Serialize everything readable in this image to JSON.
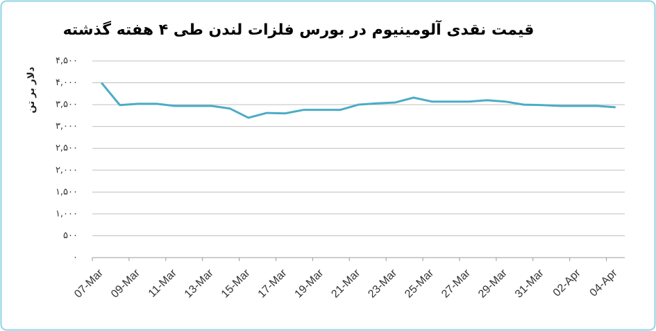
{
  "chart_data": {
    "type": "line",
    "title": "قیمت نقدی آلومینیوم در بورس فلزات لندن طی ۴ هفته گذشته",
    "y_label": "دلار بر تن",
    "categories": [
      "07-Mar",
      null,
      "09-Mar",
      null,
      "11-Mar",
      null,
      "13-Mar",
      null,
      "15-Mar",
      null,
      "17-Mar",
      null,
      "19-Mar",
      null,
      "21-Mar",
      null,
      "23-Mar",
      null,
      "25-Mar",
      null,
      "27-Mar",
      null,
      "29-Mar",
      null,
      "31-Mar",
      null,
      "02-Apr",
      null,
      "04-Apr"
    ],
    "series": [
      {
        "name": "قیمت نقدی آلومینیوم",
        "color": "#4bacc6",
        "values": [
          4000,
          3490,
          3520,
          3520,
          3470,
          3470,
          3470,
          3410,
          3200,
          3310,
          3300,
          3380,
          3380,
          3380,
          3500,
          3530,
          3550,
          3660,
          3570,
          3570,
          3570,
          3600,
          3570,
          3500,
          3490,
          3470,
          3470,
          3470,
          3440
        ]
      }
    ],
    "ylim": [
      0,
      4500
    ],
    "yticks": [
      {
        "value": 0,
        "label": "۰"
      },
      {
        "value": 500,
        "label": "۵۰۰"
      },
      {
        "value": 1000,
        "label": "۱,۰۰۰"
      },
      {
        "value": 1500,
        "label": "۱,۵۰۰"
      },
      {
        "value": 2000,
        "label": "۲,۰۰۰"
      },
      {
        "value": 2500,
        "label": "۲,۵۰۰"
      },
      {
        "value": 3000,
        "label": "۳,۰۰۰"
      },
      {
        "value": 3500,
        "label": "۳,۵۰۰"
      },
      {
        "value": 4000,
        "label": "۴,۰۰۰"
      },
      {
        "value": 4500,
        "label": "۴,۵۰۰"
      }
    ],
    "grid": true
  }
}
